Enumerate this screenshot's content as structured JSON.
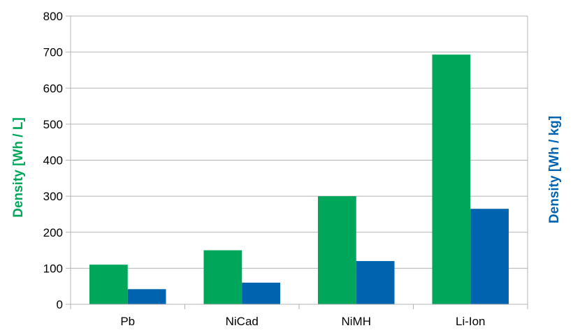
{
  "chart_data": {
    "type": "bar",
    "categories": [
      "Pb",
      "NiCad",
      "NiMH",
      "Li-Ion"
    ],
    "series": [
      {
        "values": [
          110,
          150,
          300,
          693
        ],
        "color": "#00a65a"
      },
      {
        "values": [
          42,
          60,
          120,
          265
        ],
        "color": "#0063b0"
      }
    ],
    "ylabel": "Density [Wh / L]",
    "ylabel_color": "#00a65a",
    "y2label": "Density [Wh / kg]",
    "y2label_color": "#0063b0",
    "ylim": [
      0,
      800
    ],
    "yticks": [
      "0",
      "100",
      "200",
      "300",
      "400",
      "500",
      "600",
      "700",
      "800"
    ],
    "grid": true,
    "legend": "none"
  }
}
